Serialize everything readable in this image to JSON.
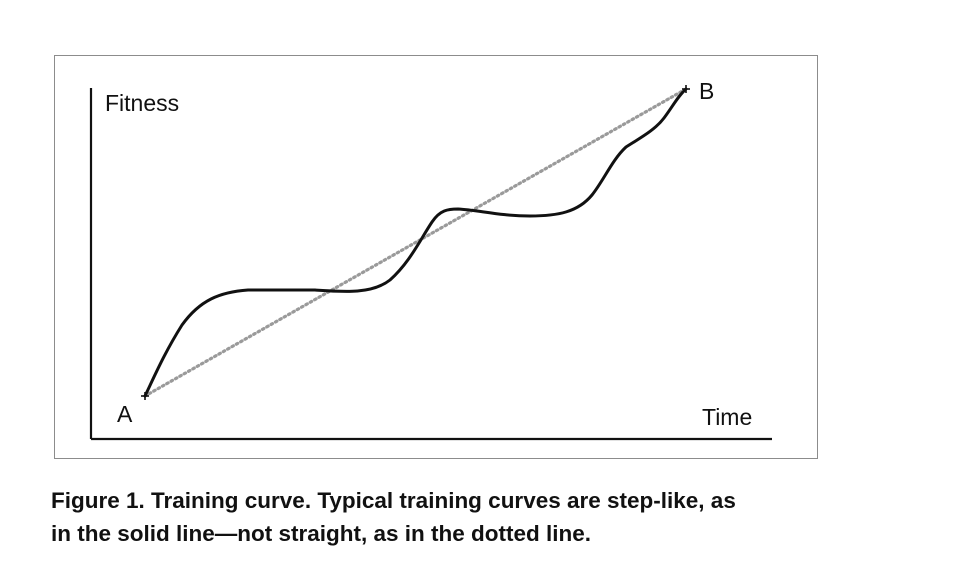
{
  "diagram": {
    "y_axis_label": "Fitness",
    "x_axis_label": "Time",
    "start_point_label": "A",
    "end_point_label": "B",
    "line_styles": {
      "solid": "step-like training curve",
      "dotted": "straight training line"
    },
    "colors": {
      "ink": "#111111",
      "dotted_line": "#9a9a9a",
      "frame": "#8c8c8c"
    }
  },
  "caption": {
    "line1": "Figure 1. Training curve. Typical training curves are step-like, as",
    "line2": "in the solid line—not straight, as in the dotted line."
  }
}
